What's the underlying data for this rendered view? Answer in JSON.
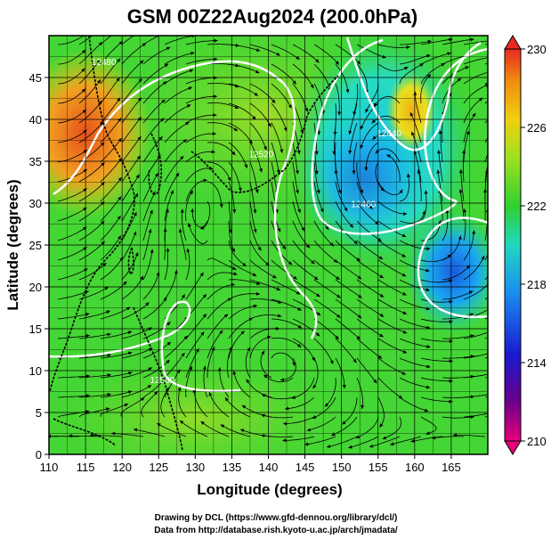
{
  "title": "GSM 00Z22Aug2024 (200.0hPa)",
  "x_axis": {
    "title": "Longitude (degrees)",
    "min": 110,
    "max": 170,
    "ticks": [
      110,
      115,
      120,
      125,
      130,
      135,
      140,
      145,
      150,
      155,
      160,
      165
    ]
  },
  "y_axis": {
    "title": "Latitude  (degrees)",
    "min": 0,
    "max": 50,
    "ticks": [
      0,
      5,
      10,
      15,
      20,
      25,
      30,
      35,
      40,
      45
    ]
  },
  "colorbar": {
    "min": 210,
    "max": 230,
    "labels": [
      "230",
      "226",
      "222",
      "218",
      "214",
      "210"
    ],
    "colors": [
      "#e8007a",
      "#6a008a",
      "#1a1ad0",
      "#1a8ff0",
      "#20d8c0",
      "#30d030",
      "#9ee020",
      "#f0d010",
      "#f08a10",
      "#e82a20"
    ]
  },
  "contour_labels": [
    {
      "text": "12500",
      "lon": 125.5,
      "lat": 8.5
    },
    {
      "text": "12460",
      "lon": 153.0,
      "lat": 29.5
    },
    {
      "text": "12440",
      "lon": 156.5,
      "lat": 38.0
    },
    {
      "text": "12480",
      "lon": 117.5,
      "lat": 46.5
    },
    {
      "text": "12520",
      "lon": 139.0,
      "lat": 35.5
    }
  ],
  "credits": {
    "line1": "Drawing by DCL (https://www.gfd-dennou.org/library/dcl/)",
    "line2": "Data from http://database.rish.kyoto-u.ac.jp/arch/jmadata/"
  }
}
